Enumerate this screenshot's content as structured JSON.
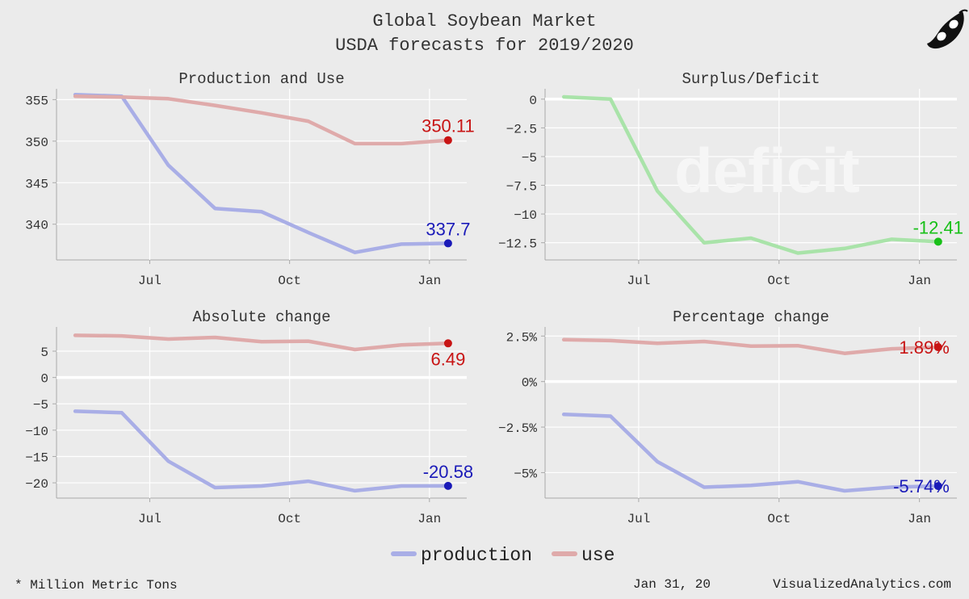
{
  "header": {
    "title": "Global Soybean Market",
    "subtitle": "USDA forecasts for 2019/2020"
  },
  "colors": {
    "production": "#a9aee6",
    "use": "#dfaaaa",
    "surplus": "#a9e3a9",
    "prod_marker": "#1a1ab8",
    "use_marker": "#c81414",
    "surplus_marker": "#18c018"
  },
  "logo_icon": "soybean-pod-icon",
  "legend": {
    "production": "production",
    "use": "use"
  },
  "footer": {
    "note": "* Million Metric Tons",
    "date": "Jan 31, 20",
    "site": "VisualizedAnalytics.com"
  },
  "chart_data": [
    {
      "id": "production-and-use",
      "type": "line",
      "title": "Production and Use",
      "x": [
        0,
        1,
        2,
        3,
        4,
        5,
        6,
        7,
        8
      ],
      "x_tick_positions": [
        1.6,
        4.6,
        7.6
      ],
      "x_tick_labels": [
        "Jul",
        "Oct",
        "Jan"
      ],
      "xlim": [
        -0.4,
        8.4
      ],
      "ylim": [
        335.7,
        356.3
      ],
      "y_ticks": [
        340,
        345,
        350,
        355
      ],
      "y_tick_labels": [
        "340",
        "345",
        "350",
        "355"
      ],
      "zero_line": null,
      "series": [
        {
          "name": "production",
          "values": [
            355.6,
            355.4,
            347.1,
            341.9,
            341.5,
            339.0,
            336.6,
            337.6,
            337.7
          ],
          "last_label": "337.7",
          "label_pos": "above"
        },
        {
          "name": "use",
          "values": [
            355.4,
            355.3,
            355.1,
            354.3,
            353.4,
            352.4,
            349.7,
            349.7,
            350.11
          ],
          "last_label": "350.11",
          "label_pos": "above"
        }
      ]
    },
    {
      "id": "surplus-deficit",
      "type": "line",
      "title": "Surplus/Deficit",
      "annotation": "deficit",
      "x": [
        0,
        1,
        2,
        3,
        4,
        5,
        6,
        7,
        8
      ],
      "x_tick_positions": [
        1.6,
        4.6,
        7.6
      ],
      "x_tick_labels": [
        "Jul",
        "Oct",
        "Jan"
      ],
      "xlim": [
        -0.4,
        8.4
      ],
      "ylim": [
        -14.0,
        0.9
      ],
      "y_ticks": [
        0,
        -2.5,
        -5,
        -7.5,
        -10,
        -12.5
      ],
      "y_tick_labels": [
        "0",
        "−2.5",
        "−5",
        "−7.5",
        "−10",
        "−12.5"
      ],
      "zero_line": 0,
      "series": [
        {
          "name": "surplus",
          "values": [
            0.2,
            0.0,
            -8.0,
            -12.5,
            -12.1,
            -13.4,
            -13.0,
            -12.2,
            -12.41
          ],
          "last_label": "-12.41",
          "label_pos": "above"
        }
      ]
    },
    {
      "id": "absolute-change",
      "type": "line",
      "title": "Absolute change",
      "x": [
        0,
        1,
        2,
        3,
        4,
        5,
        6,
        7,
        8
      ],
      "x_tick_positions": [
        1.6,
        4.6,
        7.6
      ],
      "x_tick_labels": [
        "Jul",
        "Oct",
        "Jan"
      ],
      "xlim": [
        -0.4,
        8.4
      ],
      "ylim": [
        -22.9,
        9.6
      ],
      "y_ticks": [
        5,
        0,
        -5,
        -10,
        -15,
        -20
      ],
      "y_tick_labels": [
        "5",
        "0",
        "−5",
        "−10",
        "−15",
        "−20"
      ],
      "zero_line": 0,
      "series": [
        {
          "name": "production",
          "values": [
            -6.4,
            -6.7,
            -15.9,
            -20.9,
            -20.6,
            -19.7,
            -21.5,
            -20.6,
            -20.58
          ],
          "last_label": "-20.58",
          "label_pos": "above"
        },
        {
          "name": "use",
          "values": [
            8.0,
            7.9,
            7.3,
            7.6,
            6.8,
            6.9,
            5.3,
            6.2,
            6.49
          ],
          "last_label": "6.49",
          "label_pos": "below"
        }
      ]
    },
    {
      "id": "percentage-change",
      "type": "line",
      "title": "Percentage change",
      "x": [
        0,
        1,
        2,
        3,
        4,
        5,
        6,
        7,
        8
      ],
      "x_tick_positions": [
        1.6,
        4.6,
        7.6
      ],
      "x_tick_labels": [
        "Jul",
        "Oct",
        "Jan"
      ],
      "xlim": [
        -0.4,
        8.4
      ],
      "ylim": [
        -6.4,
        3.0
      ],
      "y_ticks": [
        2.5,
        0,
        -2.5,
        -5
      ],
      "y_tick_labels": [
        "2.5%",
        "0%",
        "−2.5%",
        "−5%"
      ],
      "zero_line": 0,
      "series": [
        {
          "name": "production",
          "values": [
            -1.8,
            -1.9,
            -4.4,
            -5.8,
            -5.7,
            -5.5,
            -6.0,
            -5.8,
            -5.74
          ],
          "last_label": "-5.74%",
          "label_pos": "right"
        },
        {
          "name": "use",
          "values": [
            2.3,
            2.25,
            2.1,
            2.2,
            1.95,
            1.97,
            1.55,
            1.8,
            1.89
          ],
          "last_label": "1.89%",
          "label_pos": "right"
        }
      ]
    }
  ]
}
